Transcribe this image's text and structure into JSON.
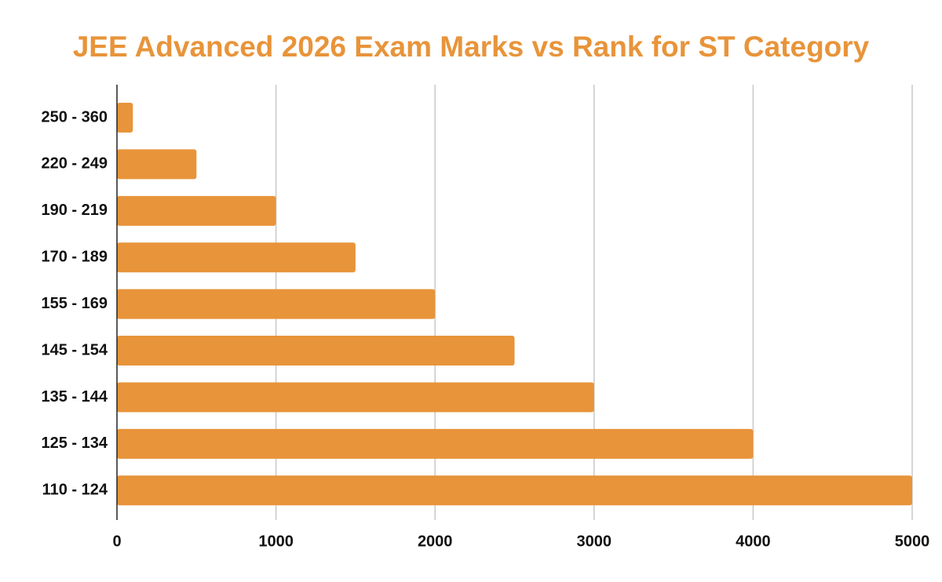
{
  "chart_data": {
    "type": "bar",
    "orientation": "horizontal",
    "title": "JEE Advanced 2026 Exam Marks vs Rank for ST Category",
    "categories": [
      "250 - 360",
      "220 - 249",
      "190 - 219",
      "170 - 189",
      "155 - 169",
      "145 - 154",
      "135 - 144",
      "125 - 134",
      "110 - 124"
    ],
    "values": [
      100,
      500,
      1000,
      1500,
      2000,
      2500,
      3000,
      4000,
      5000
    ],
    "color": "#e8943a",
    "xlim": [
      0,
      5000
    ],
    "xticks": [
      0,
      1000,
      2000,
      3000,
      4000,
      5000
    ],
    "grid": true
  }
}
